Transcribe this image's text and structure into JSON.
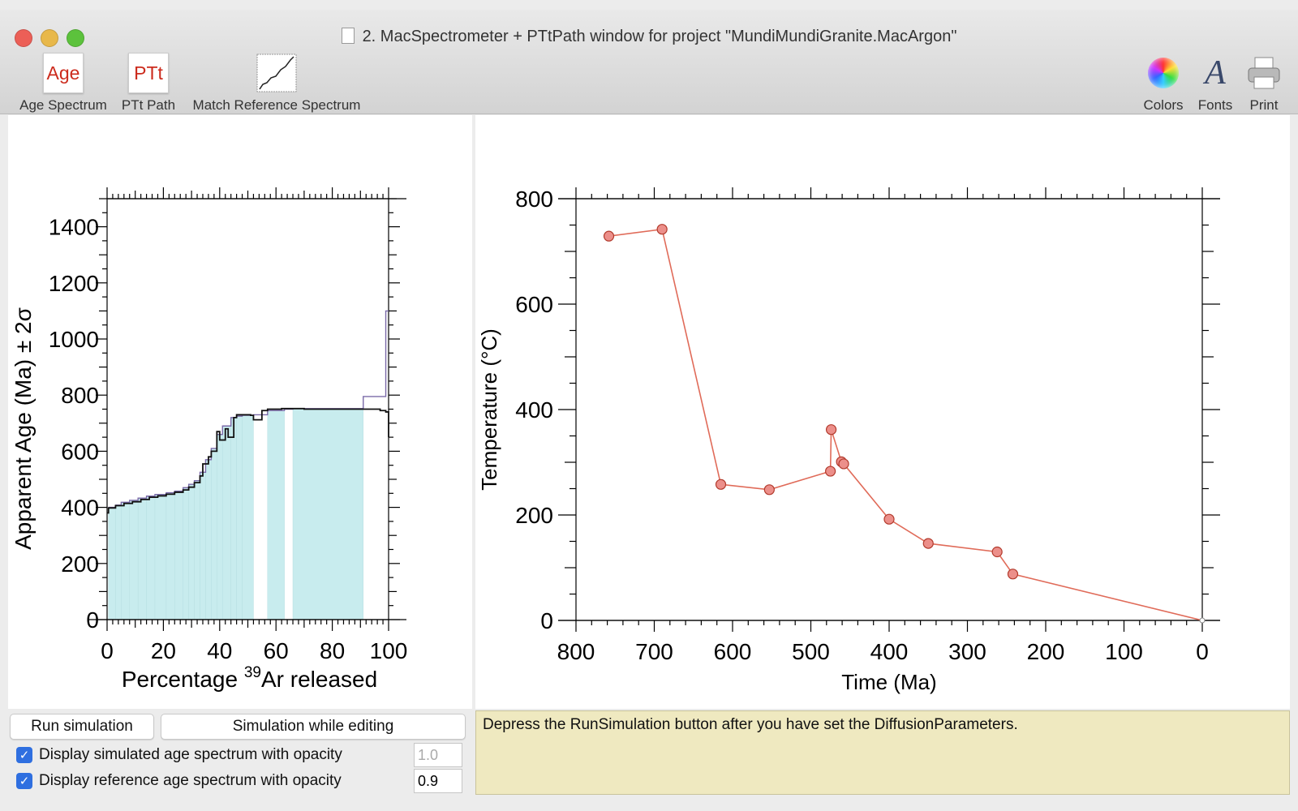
{
  "window": {
    "title": "2. MacSpectrometer + PTtPath window for project \"MundiMundiGranite.MacArgon\"",
    "traffic_lights": {
      "close": "#ec5f57",
      "minimize": "#e8b84a",
      "maximize": "#5cc23c"
    }
  },
  "toolbar": {
    "age_spectrum": {
      "icon_text": "Age",
      "label": "Age Spectrum"
    },
    "ptt_path": {
      "icon_text": "PTt",
      "label": "PTt Path"
    },
    "match_reference": {
      "label": "Match Reference Spectrum"
    },
    "colors": {
      "label": "Colors",
      "icon": "color-wheel-icon"
    },
    "fonts": {
      "icon_text": "A",
      "label": "Fonts"
    },
    "print": {
      "label": "Print",
      "icon": "printer-icon"
    },
    "icon_text_color": "#cc2b1d"
  },
  "chart_data": [
    {
      "type": "area",
      "xlabel_prefix": "Percentage ",
      "xlabel_sup": "39",
      "xlabel_suffix": "Ar released",
      "ylabel": "Apparent Age (Ma) ± 2σ",
      "xlim": [
        0,
        100
      ],
      "ylim": [
        0,
        1500
      ],
      "xticks": [
        "0",
        "20",
        "40",
        "60",
        "80",
        "100"
      ],
      "yticks": [
        "0",
        "200",
        "400",
        "600",
        "800",
        "1000",
        "1200",
        "1400"
      ],
      "reference_steps": [
        [
          0.5,
          3,
          400
        ],
        [
          3,
          5,
          408
        ],
        [
          5,
          8,
          418
        ],
        [
          8,
          11,
          425
        ],
        [
          11,
          14,
          433
        ],
        [
          14,
          17,
          440
        ],
        [
          17,
          21,
          446
        ],
        [
          21,
          24,
          452
        ],
        [
          24,
          27,
          458
        ],
        [
          27,
          29,
          470
        ],
        [
          29,
          31,
          482
        ],
        [
          31,
          33,
          495
        ],
        [
          33,
          35,
          525
        ],
        [
          35,
          37,
          570
        ],
        [
          37,
          39,
          610
        ],
        [
          39,
          41,
          660
        ],
        [
          41,
          44,
          690
        ],
        [
          44,
          46,
          720
        ],
        [
          46,
          48,
          725
        ],
        [
          48,
          52,
          728
        ],
        [
          57,
          63,
          745
        ],
        [
          66,
          91,
          752
        ]
      ],
      "reference_color": "#c8ecee",
      "simulated_series": {
        "x": [
          0,
          0.5,
          0.5,
          3,
          3,
          6,
          6,
          9,
          9,
          12,
          12,
          15,
          15,
          18,
          18,
          21,
          21,
          24,
          24,
          27,
          27,
          29,
          29,
          31,
          31,
          33,
          33,
          34,
          34,
          36,
          36,
          37,
          37,
          39,
          39,
          40,
          40,
          42,
          42,
          43,
          43,
          45,
          45,
          46,
          46,
          51,
          51,
          52,
          52,
          55,
          55,
          57,
          57,
          62,
          62,
          66,
          66,
          70,
          70,
          97,
          97,
          99,
          99,
          100,
          100
        ],
        "y": [
          380,
          380,
          398,
          398,
          406,
          406,
          414,
          414,
          420,
          420,
          428,
          428,
          436,
          436,
          441,
          441,
          447,
          447,
          454,
          454,
          462,
          462,
          472,
          472,
          488,
          488,
          512,
          512,
          555,
          555,
          580,
          580,
          600,
          600,
          670,
          670,
          640,
          640,
          680,
          680,
          650,
          650,
          720,
          720,
          730,
          730,
          728,
          728,
          712,
          712,
          745,
          745,
          750,
          750,
          752,
          752,
          752,
          752,
          750,
          750,
          745,
          745,
          740,
          740,
          650
        ],
        "color": "#111111"
      },
      "reference_outline": {
        "x": [
          0.5,
          3,
          3,
          5,
          5,
          8,
          8,
          11,
          11,
          14,
          14,
          17,
          17,
          21,
          21,
          24,
          24,
          27,
          27,
          29,
          29,
          31,
          31,
          33,
          33,
          35,
          35,
          37,
          37,
          39,
          39,
          41,
          41,
          44,
          44,
          46,
          46,
          48,
          48,
          52,
          52,
          57,
          57,
          63,
          63,
          66,
          66,
          91,
          91,
          99,
          99,
          100
        ],
        "y": [
          400,
          400,
          408,
          408,
          418,
          418,
          425,
          425,
          433,
          433,
          440,
          440,
          446,
          446,
          452,
          452,
          458,
          458,
          470,
          470,
          482,
          482,
          495,
          495,
          525,
          525,
          570,
          570,
          610,
          610,
          660,
          660,
          690,
          690,
          720,
          720,
          725,
          725,
          728,
          728,
          730,
          730,
          745,
          745,
          750,
          750,
          752,
          752,
          795,
          795,
          1100,
          1100
        ],
        "color": "#7a6aa8"
      }
    },
    {
      "type": "line",
      "xlabel": "Time (Ma)",
      "ylabel": "Temperature (°C)",
      "xlim": [
        800,
        0
      ],
      "ylim": [
        0,
        800
      ],
      "xticks": [
        "800",
        "700",
        "600",
        "500",
        "400",
        "300",
        "200",
        "100",
        "0"
      ],
      "yticks": [
        "0",
        "200",
        "400",
        "600",
        "800"
      ],
      "x": [
        758,
        690,
        615,
        553,
        475,
        474,
        461,
        458,
        400,
        350,
        262,
        242,
        0
      ],
      "y": [
        729,
        742,
        258,
        248,
        283,
        362,
        301,
        297,
        192,
        146,
        130,
        88,
        0
      ],
      "color": "#e06b59",
      "marker_fill": "#ec8f8a",
      "marker_stroke": "#b23a2c"
    }
  ],
  "controls": {
    "run_button": "Run simulation",
    "editing_button": "Simulation while editing",
    "sim_checkbox_label": "Display simulated age spectrum with opacity",
    "sim_opacity": "1.0",
    "ref_checkbox_label": "Display reference age spectrum with opacity",
    "ref_opacity": "0.9"
  },
  "message": "Depress the RunSimulation button after you have set the DiffusionParameters."
}
